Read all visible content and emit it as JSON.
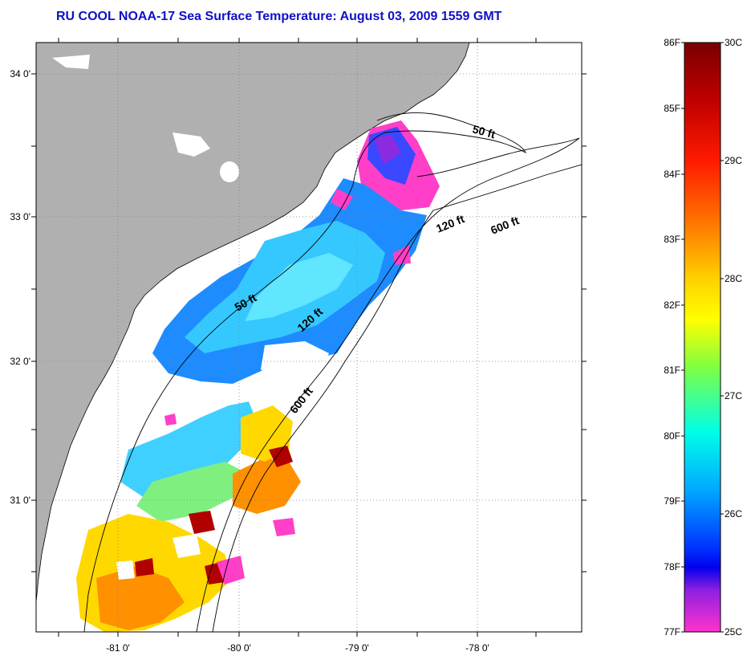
{
  "title": "RU COOL  NOAA-17  Sea Surface Temperature:  August 03, 2009 1559 GMT",
  "map": {
    "x_ticks": [
      "-81 0'",
      "-80 0'",
      "-79 0'",
      "-78 0'"
    ],
    "y_ticks": [
      "34 0'",
      "33 0'",
      "32 0'",
      "31 0'"
    ],
    "colors": {
      "land": "#b0b0b0",
      "ocean_nodata": "#ffffff",
      "coastline": "#000000",
      "graticule": "#808080"
    },
    "contours": [
      {
        "name": "50 ft",
        "label": "50 ft"
      },
      {
        "name": "120 ft",
        "label": "120 ft"
      },
      {
        "name": "600 ft",
        "label": "600 ft"
      },
      {
        "name": "50 ft inshore",
        "label": "50 ft"
      },
      {
        "name": "120 ft mid",
        "label": "120 ft"
      },
      {
        "name": "600 ft south",
        "label": "600 ft"
      }
    ]
  },
  "colorbar": {
    "fahrenheit_labels": [
      "86F",
      "85F",
      "84F",
      "83F",
      "82F",
      "81F",
      "80F",
      "79F",
      "78F",
      "77F"
    ],
    "celsius_labels": [
      "30C",
      "29C",
      "28C",
      "27C",
      "26C",
      "25C"
    ],
    "range_f": [
      77,
      86
    ],
    "range_c": [
      25,
      30
    ],
    "gradient": [
      "#7a0000",
      "#c00000",
      "#ff0000",
      "#ff6000",
      "#ffb000",
      "#ffff00",
      "#90ff30",
      "#00ffe0",
      "#00c0ff",
      "#0060ff",
      "#0000ff",
      "#8a2be2",
      "#ff00ff",
      "#ff33cc"
    ]
  }
}
